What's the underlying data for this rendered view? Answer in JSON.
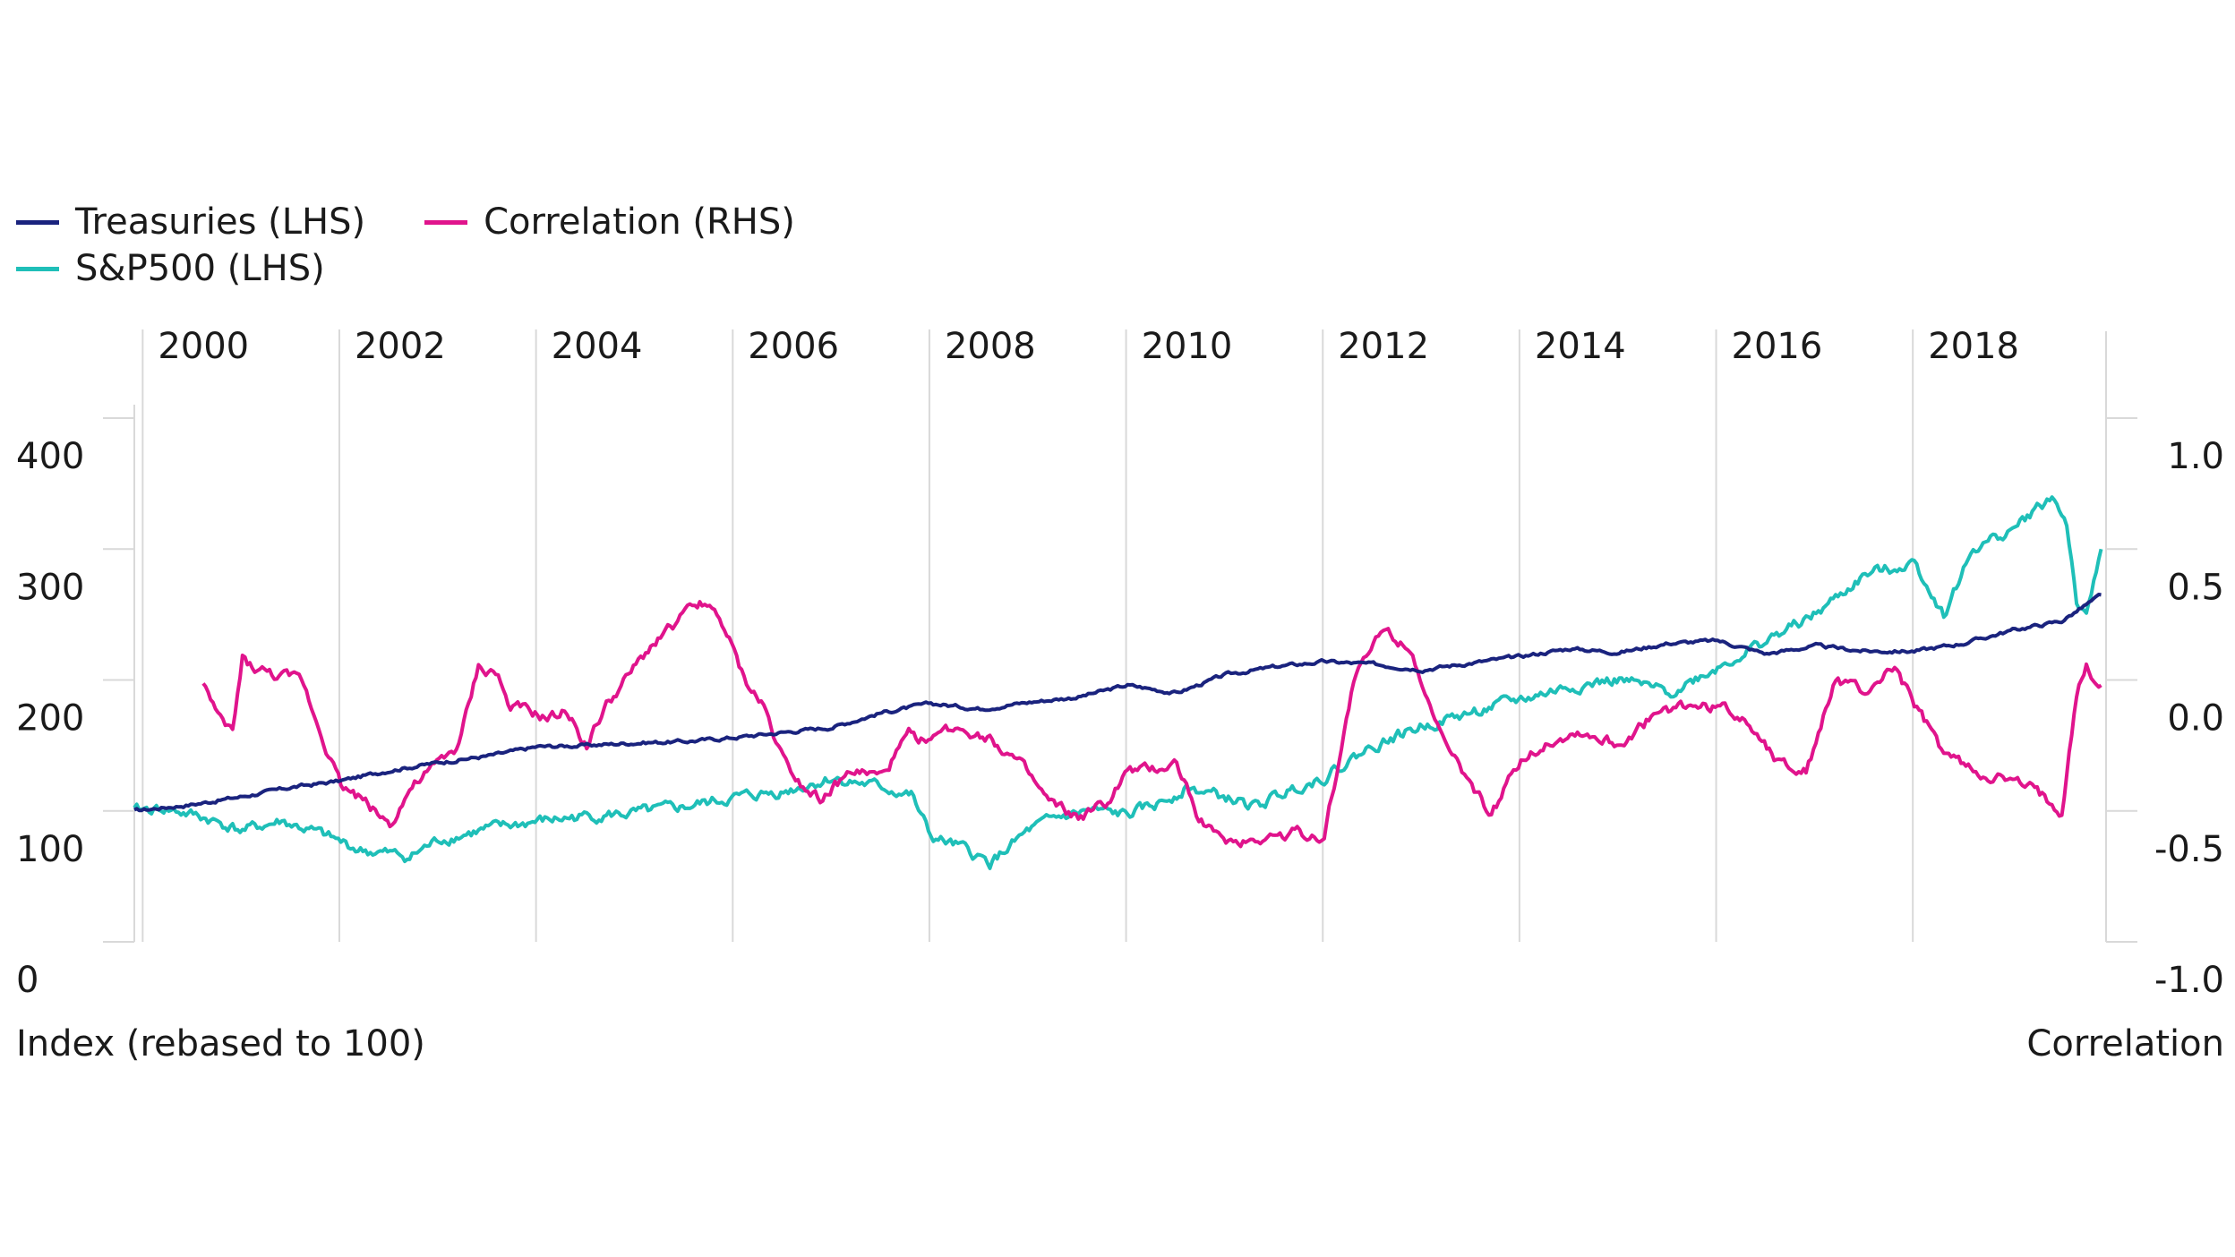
{
  "chart_data": {
    "type": "line",
    "legend": {
      "items": [
        {
          "key": "treasuries",
          "label": "Treasuries (LHS)",
          "color": "#1a237e"
        },
        {
          "key": "correlation",
          "label": "Correlation (RHS)",
          "color": "#e0148c"
        },
        {
          "key": "sp500",
          "label": "S&P500 (LHS)",
          "color": "#1fbfb8"
        }
      ],
      "placement": "top-left"
    },
    "x_axis": {
      "ticks": [
        "2000",
        "2002",
        "2004",
        "2006",
        "2008",
        "2010",
        "2012",
        "2014",
        "2016",
        "2018"
      ],
      "range": [
        1999.9,
        2019.95
      ],
      "grid": true
    },
    "left_axis": {
      "title": "Index (rebased to 100)",
      "range": [
        0,
        400
      ],
      "ticks": [
        "0",
        "100",
        "200",
        "300",
        "400"
      ]
    },
    "right_axis": {
      "title": "Correlation",
      "range": [
        -1.0,
        1.0
      ],
      "ticks": [
        "-1.0",
        "-0.5",
        "0.0",
        "0.5",
        "1.0"
      ]
    },
    "series": [
      {
        "name": "Treasuries (LHS)",
        "axis": "left",
        "color": "#1a237e",
        "x": [
          1999.9,
          2000.5,
          2001.0,
          2001.5,
          2002.0,
          2002.5,
          2003.0,
          2003.5,
          2004.0,
          2004.5,
          2005.0,
          2005.5,
          2006.0,
          2006.5,
          2007.0,
          2007.5,
          2008.0,
          2008.5,
          2009.0,
          2009.5,
          2010.0,
          2010.5,
          2011.0,
          2011.5,
          2012.0,
          2012.5,
          2013.0,
          2013.5,
          2014.0,
          2014.5,
          2015.0,
          2015.5,
          2016.0,
          2016.5,
          2017.0,
          2017.5,
          2018.0,
          2018.5,
          2019.0,
          2019.5,
          2019.9
        ],
        "values": [
          100,
          105,
          111,
          118,
          123,
          131,
          137,
          142,
          149,
          150,
          152,
          153,
          156,
          160,
          164,
          175,
          182,
          178,
          183,
          187,
          196,
          190,
          204,
          210,
          214,
          212,
          208,
          213,
          218,
          224,
          221,
          228,
          230,
          220,
          226,
          222,
          222,
          228,
          238,
          245,
          265
        ]
      },
      {
        "name": "S&P500 (LHS)",
        "axis": "left",
        "color": "#1fbfb8",
        "x": [
          1999.9,
          2000.2,
          2000.6,
          2001.0,
          2001.4,
          2001.8,
          2002.2,
          2002.7,
          2003.0,
          2003.5,
          2004.0,
          2004.5,
          2005.0,
          2005.5,
          2006.0,
          2006.5,
          2007.0,
          2007.5,
          2007.8,
          2008.0,
          2008.3,
          2008.6,
          2009.0,
          2009.3,
          2009.6,
          2010.0,
          2010.3,
          2010.6,
          2011.0,
          2011.3,
          2011.7,
          2012.0,
          2012.5,
          2013.0,
          2013.5,
          2014.0,
          2014.5,
          2015.0,
          2015.5,
          2016.0,
          2016.5,
          2017.0,
          2017.5,
          2018.0,
          2018.3,
          2018.6,
          2019.0,
          2019.4,
          2019.55,
          2019.65,
          2019.75,
          2019.9
        ],
        "values": [
          100,
          102,
          95,
          85,
          92,
          82,
          70,
          65,
          78,
          86,
          92,
          96,
          98,
          103,
          110,
          115,
          125,
          118,
          112,
          80,
          72,
          60,
          85,
          95,
          100,
          97,
          105,
          118,
          110,
          103,
          118,
          126,
          150,
          165,
          175,
          185,
          195,
          200,
          190,
          210,
          230,
          250,
          280,
          290,
          250,
          300,
          315,
          340,
          320,
          260,
          245,
          300
        ]
      },
      {
        "name": "Correlation (RHS)",
        "axis": "right",
        "color": "#e0148c",
        "x": [
          2000.6,
          2000.75,
          2000.9,
          2001.0,
          2001.1,
          2001.3,
          2001.6,
          2001.8,
          2002.0,
          2002.2,
          2002.5,
          2002.7,
          2002.9,
          2003.2,
          2003.4,
          2003.6,
          2003.7,
          2003.9,
          2004.1,
          2004.3,
          2004.5,
          2004.7,
          2004.9,
          2005.2,
          2005.5,
          2005.7,
          2005.9,
          2006.1,
          2006.3,
          2006.5,
          2006.7,
          2006.9,
          2007.2,
          2007.5,
          2007.8,
          2008.0,
          2008.05,
          2008.3,
          2008.6,
          2008.9,
          2009.2,
          2009.5,
          2009.8,
          2010.0,
          2010.2,
          2010.5,
          2010.7,
          2010.9,
          2011.1,
          2011.4,
          2011.7,
          2012.0,
          2012.3,
          2012.6,
          2012.9,
          2013.1,
          2013.3,
          2013.5,
          2013.7,
          2014.0,
          2014.2,
          2014.4,
          2014.6,
          2015.0,
          2015.3,
          2015.6,
          2016.0,
          2016.3,
          2016.6,
          2016.9,
          2017.2,
          2017.5,
          2017.8,
          2018.0,
          2018.3,
          2018.6,
          2018.9,
          2019.2,
          2019.5,
          2019.65,
          2019.75,
          2019.8,
          2019.9
        ],
        "values": [
          0.0,
          -0.15,
          -0.2,
          0.08,
          0.05,
          0.02,
          0.0,
          -0.2,
          -0.4,
          -0.45,
          -0.55,
          -0.42,
          -0.35,
          -0.25,
          0.05,
          0.02,
          -0.1,
          -0.12,
          -0.15,
          -0.12,
          -0.25,
          -0.1,
          0.0,
          0.15,
          0.25,
          0.3,
          0.2,
          0.0,
          -0.1,
          -0.3,
          -0.4,
          -0.45,
          -0.35,
          -0.37,
          -0.2,
          -0.25,
          -0.2,
          -0.18,
          -0.22,
          -0.32,
          -0.47,
          -0.53,
          -0.47,
          -0.35,
          -0.35,
          -0.32,
          -0.5,
          -0.6,
          -0.62,
          -0.6,
          -0.58,
          -0.6,
          0.0,
          0.2,
          0.12,
          -0.15,
          -0.3,
          -0.4,
          -0.52,
          -0.3,
          -0.25,
          -0.22,
          -0.2,
          -0.25,
          -0.15,
          -0.1,
          -0.1,
          -0.15,
          -0.3,
          -0.35,
          0.0,
          -0.05,
          0.05,
          -0.1,
          -0.28,
          -0.35,
          -0.38,
          -0.42,
          -0.5,
          -0.05,
          0.05,
          0.0,
          -0.02
        ]
      }
    ]
  }
}
